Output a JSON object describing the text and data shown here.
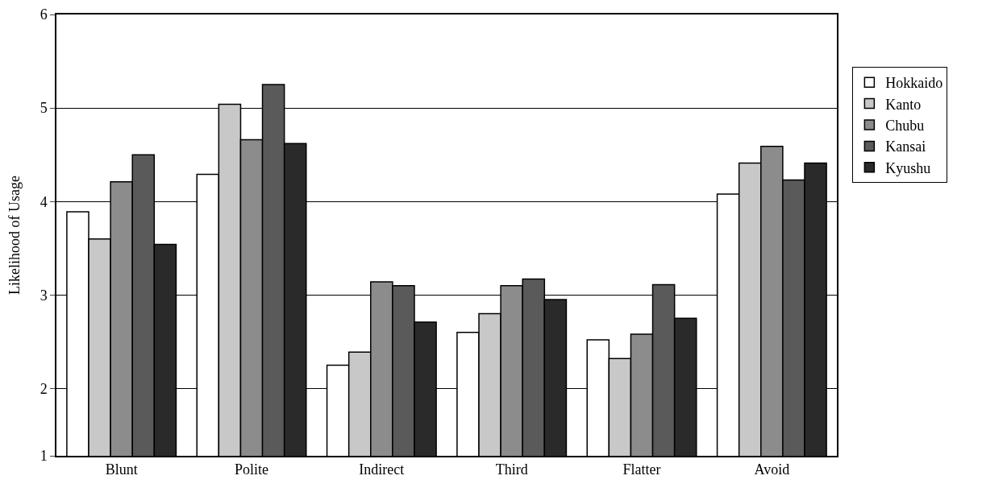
{
  "chart_data": {
    "type": "bar",
    "ylabel": "Likelihood of Usage",
    "categories": [
      "Blunt",
      "Polite",
      "Indirect",
      "Third",
      "Flatter",
      "Avoid"
    ],
    "series": [
      {
        "name": "Hokkaido",
        "color": "#ffffff",
        "values": [
          3.89,
          4.29,
          2.25,
          2.6,
          2.52,
          4.08
        ]
      },
      {
        "name": "Kanto",
        "color": "#c8c8c8",
        "values": [
          3.6,
          5.04,
          2.39,
          2.8,
          2.32,
          4.41
        ]
      },
      {
        "name": "Chubu",
        "color": "#8c8c8c",
        "values": [
          4.21,
          4.66,
          3.14,
          3.1,
          2.58,
          4.59
        ]
      },
      {
        "name": "Kansai",
        "color": "#5a5a5a",
        "values": [
          4.5,
          5.25,
          3.1,
          3.17,
          3.11,
          4.23
        ]
      },
      {
        "name": "Kyushu",
        "color": "#2a2a2a",
        "values": [
          3.54,
          4.62,
          2.71,
          2.95,
          2.75,
          4.41
        ]
      }
    ],
    "ylim": [
      1.28,
      6
    ],
    "yticks": [
      {
        "value": 1.28,
        "label": "1"
      },
      2,
      3,
      4,
      5,
      6
    ],
    "grid": "y",
    "legend": "right"
  }
}
